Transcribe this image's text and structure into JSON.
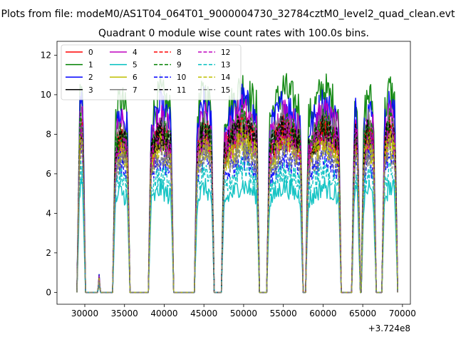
{
  "chart_data": {
    "type": "line",
    "suptitle": "Plots from file: modeM0/AS1T04_064T01_9000004730_32784cztM0_level2_quad_clean.evt",
    "title": "Quadrant 0 module wise count rates with 100.0s bins.",
    "xlabel": "",
    "ylabel": "",
    "offset_text": "+3.724e8",
    "xlim": [
      26500,
      71000
    ],
    "ylim": [
      -0.6,
      12.7
    ],
    "xticks": [
      30000,
      35000,
      40000,
      45000,
      50000,
      55000,
      60000,
      65000,
      70000
    ],
    "xtick_labels": [
      "30000",
      "35000",
      "40000",
      "45000",
      "50000",
      "55000",
      "60000",
      "65000",
      "70000"
    ],
    "yticks": [
      0,
      2,
      4,
      6,
      8,
      10,
      12
    ],
    "ytick_labels": [
      "0",
      "2",
      "4",
      "6",
      "8",
      "10",
      "12"
    ],
    "legend_location": "upper-left",
    "on_segments": [
      [
        29000,
        30100
      ],
      [
        33500,
        35700
      ],
      [
        38000,
        41200
      ],
      [
        43800,
        46300
      ],
      [
        47200,
        52000
      ],
      [
        52900,
        57500
      ],
      [
        57800,
        62300
      ],
      [
        63600,
        64700
      ],
      [
        64800,
        66700
      ],
      [
        67400,
        69400
      ]
    ],
    "blip": [
      31800,
      0.7
    ],
    "peaks": [
      [
        29500,
        8.2
      ],
      [
        34500,
        7.8
      ],
      [
        39500,
        8.0
      ],
      [
        45000,
        8.1
      ],
      [
        49800,
        8.3
      ],
      [
        55000,
        8.2
      ],
      [
        60000,
        8.2
      ],
      [
        64100,
        7.8
      ],
      [
        65700,
        8.0
      ],
      [
        68400,
        8.2
      ]
    ],
    "series": [
      {
        "name": "0",
        "color": "#ff0000",
        "dash": false,
        "scale": 1.03
      },
      {
        "name": "1",
        "color": "#008000",
        "dash": false,
        "scale": 1.26
      },
      {
        "name": "2",
        "color": "#0000ff",
        "dash": false,
        "scale": 1.17
      },
      {
        "name": "3",
        "color": "#000000",
        "dash": false,
        "scale": 0.99
      },
      {
        "name": "4",
        "color": "#bf00bf",
        "dash": false,
        "scale": 1.11
      },
      {
        "name": "5",
        "color": "#00bfbf",
        "dash": false,
        "scale": 0.66
      },
      {
        "name": "6",
        "color": "#bfbf00",
        "dash": false,
        "scale": 0.95
      },
      {
        "name": "7",
        "color": "#808080",
        "dash": false,
        "scale": 1.06
      },
      {
        "name": "8",
        "color": "#ff0000",
        "dash": true,
        "scale": 1.0
      },
      {
        "name": "9",
        "color": "#008000",
        "dash": true,
        "scale": 1.04
      },
      {
        "name": "10",
        "color": "#0000ff",
        "dash": true,
        "scale": 0.84
      },
      {
        "name": "11",
        "color": "#000000",
        "dash": true,
        "scale": 1.02
      },
      {
        "name": "12",
        "color": "#bf00bf",
        "dash": true,
        "scale": 0.97
      },
      {
        "name": "13",
        "color": "#00bfbf",
        "dash": true,
        "scale": 0.76
      },
      {
        "name": "14",
        "color": "#bfbf00",
        "dash": true,
        "scale": 0.93
      },
      {
        "name": "15",
        "color": "#808080",
        "dash": true,
        "scale": 0.88
      }
    ]
  }
}
